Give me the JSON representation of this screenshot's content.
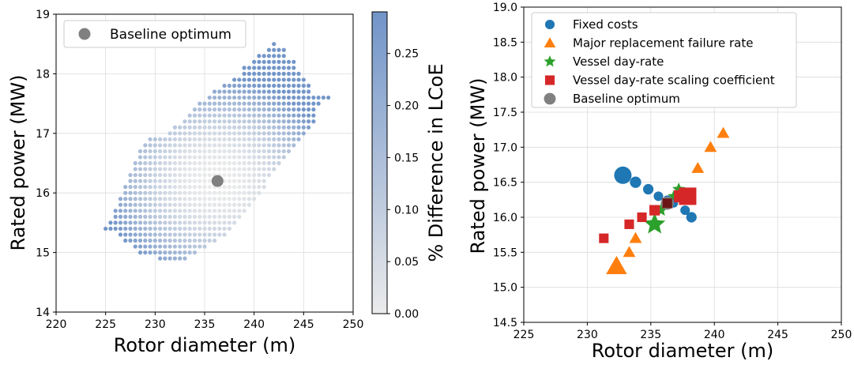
{
  "chart_data": [
    {
      "type": "scatter",
      "xlabel": "Rotor diameter (m)",
      "ylabel": "Rated power (MW)",
      "xlim": [
        220,
        250
      ],
      "ylim": [
        14,
        19
      ],
      "xticks": [
        "220",
        "225",
        "230",
        "235",
        "240",
        "245",
        "250"
      ],
      "yticks": [
        "14",
        "15",
        "16",
        "17",
        "18",
        "19"
      ],
      "grid": true,
      "legend": {
        "placement": "top-left",
        "entries": [
          {
            "label": "Baseline optimum",
            "color": "#808080"
          }
        ]
      },
      "baseline_optimum": {
        "x": 236.3,
        "y": 16.2
      },
      "colorbar": {
        "label": "% Difference in LCoE",
        "range": [
          0,
          0.29
        ],
        "ticks": [
          "0.00",
          "0.05",
          "0.10",
          "0.15",
          "0.20",
          "0.25"
        ],
        "color_low": "#ebebeb",
        "color_high": "#7194c8"
      },
      "grid_points": {
        "description_of_region": "feasible design grid",
        "rows": [
          {
            "y": 14.9,
            "x_from": 230.5,
            "x_to": 233.0
          },
          {
            "y": 15.0,
            "x_from": 228.5,
            "x_to": 234.0
          },
          {
            "y": 15.1,
            "x_from": 228.0,
            "x_to": 235.0
          },
          {
            "y": 15.2,
            "x_from": 227.0,
            "x_to": 236.0
          },
          {
            "y": 15.3,
            "x_from": 226.5,
            "x_to": 237.0
          },
          {
            "y": 15.4,
            "x_from": 225.0,
            "x_to": 237.5
          },
          {
            "y": 15.5,
            "x_from": 225.5,
            "x_to": 238.0
          },
          {
            "y": 15.6,
            "x_from": 226.0,
            "x_to": 238.5
          },
          {
            "y": 15.7,
            "x_from": 226.0,
            "x_to": 239.0
          },
          {
            "y": 15.8,
            "x_from": 226.5,
            "x_to": 239.5
          },
          {
            "y": 15.9,
            "x_from": 226.5,
            "x_to": 240.0
          },
          {
            "y": 16.0,
            "x_from": 227.0,
            "x_to": 240.5
          },
          {
            "y": 16.1,
            "x_from": 227.0,
            "x_to": 241.0
          },
          {
            "y": 16.2,
            "x_from": 227.5,
            "x_to": 241.0
          },
          {
            "y": 16.3,
            "x_from": 227.5,
            "x_to": 241.5
          },
          {
            "y": 16.4,
            "x_from": 228.0,
            "x_to": 242.0
          },
          {
            "y": 16.5,
            "x_from": 228.0,
            "x_to": 242.5
          },
          {
            "y": 16.6,
            "x_from": 228.5,
            "x_to": 243.0
          },
          {
            "y": 16.7,
            "x_from": 228.5,
            "x_to": 243.5
          },
          {
            "y": 16.8,
            "x_from": 229.0,
            "x_to": 244.0
          },
          {
            "y": 16.9,
            "x_from": 229.5,
            "x_to": 244.5
          },
          {
            "y": 17.0,
            "x_from": 231.5,
            "x_to": 245.0
          },
          {
            "y": 17.1,
            "x_from": 232.0,
            "x_to": 245.5
          },
          {
            "y": 17.2,
            "x_from": 233.0,
            "x_to": 246.0
          },
          {
            "y": 17.3,
            "x_from": 233.5,
            "x_to": 246.0
          },
          {
            "y": 17.4,
            "x_from": 234.0,
            "x_to": 246.0
          },
          {
            "y": 17.5,
            "x_from": 234.5,
            "x_to": 246.5
          },
          {
            "y": 17.6,
            "x_from": 235.5,
            "x_to": 247.5
          },
          {
            "y": 17.7,
            "x_from": 236.0,
            "x_to": 245.5
          },
          {
            "y": 17.8,
            "x_from": 237.0,
            "x_to": 245.5
          },
          {
            "y": 17.9,
            "x_from": 238.0,
            "x_to": 245.0
          },
          {
            "y": 18.0,
            "x_from": 239.0,
            "x_to": 244.5
          },
          {
            "y": 18.1,
            "x_from": 239.0,
            "x_to": 244.0
          },
          {
            "y": 18.2,
            "x_from": 240.0,
            "x_to": 244.0
          },
          {
            "y": 18.3,
            "x_from": 240.5,
            "x_to": 243.0
          },
          {
            "y": 18.4,
            "x_from": 241.5,
            "x_to": 243.0
          },
          {
            "y": 18.5,
            "x_from": 242.0,
            "x_to": 242.0
          }
        ]
      }
    },
    {
      "type": "scatter",
      "xlabel": "Rotor diameter (m)",
      "ylabel": "Rated power (MW)",
      "xlim": [
        225,
        250
      ],
      "ylim": [
        14.5,
        19.0
      ],
      "xticks": [
        "225",
        "230",
        "235",
        "240",
        "245",
        "250"
      ],
      "yticks": [
        "14.5",
        "15.0",
        "15.5",
        "16.0",
        "16.5",
        "17.0",
        "17.5",
        "18.0",
        "18.5",
        "19.0"
      ],
      "grid": true,
      "legend": {
        "placement": "top-left"
      },
      "series": [
        {
          "name": "Fixed costs",
          "marker": "circle",
          "color": "#1f77b4",
          "points": [
            {
              "x": 232.8,
              "y": 16.6,
              "s": 2.0
            },
            {
              "x": 233.8,
              "y": 16.5,
              "s": 1.3
            },
            {
              "x": 234.8,
              "y": 16.4,
              "s": 1.2
            },
            {
              "x": 235.6,
              "y": 16.3,
              "s": 1.1
            },
            {
              "x": 236.3,
              "y": 16.25,
              "s": 1.0
            },
            {
              "x": 236.8,
              "y": 16.2,
              "s": 1.0
            },
            {
              "x": 237.7,
              "y": 16.1,
              "s": 1.1
            },
            {
              "x": 238.2,
              "y": 16.0,
              "s": 1.2
            }
          ]
        },
        {
          "name": "Major replacement failure rate",
          "marker": "triangle",
          "color": "#ff7f0e",
          "points": [
            {
              "x": 232.3,
              "y": 15.3,
              "s": 2.0
            },
            {
              "x": 233.3,
              "y": 15.5,
              "s": 1.2
            },
            {
              "x": 233.8,
              "y": 15.7,
              "s": 1.2
            },
            {
              "x": 238.7,
              "y": 16.7,
              "s": 1.2
            },
            {
              "x": 239.7,
              "y": 17.0,
              "s": 1.2
            },
            {
              "x": 240.7,
              "y": 17.2,
              "s": 1.2
            }
          ]
        },
        {
          "name": "Vessel day-rate",
          "marker": "star",
          "color": "#2ca02c",
          "points": [
            {
              "x": 235.3,
              "y": 15.9,
              "s": 2.0
            },
            {
              "x": 235.8,
              "y": 16.1,
              "s": 1.2
            },
            {
              "x": 236.3,
              "y": 16.2,
              "s": 1.1
            },
            {
              "x": 236.8,
              "y": 16.3,
              "s": 1.1
            },
            {
              "x": 237.2,
              "y": 16.4,
              "s": 1.2
            }
          ]
        },
        {
          "name": "Vessel day-rate scaling coefficient",
          "marker": "square",
          "color": "#d62728",
          "points": [
            {
              "x": 231.3,
              "y": 15.7,
              "s": 1.1
            },
            {
              "x": 233.3,
              "y": 15.9,
              "s": 1.1
            },
            {
              "x": 234.3,
              "y": 16.0,
              "s": 1.1
            },
            {
              "x": 235.3,
              "y": 16.1,
              "s": 1.2
            },
            {
              "x": 236.3,
              "y": 16.2,
              "s": 1.2
            },
            {
              "x": 237.3,
              "y": 16.3,
              "s": 1.4
            },
            {
              "x": 237.9,
              "y": 16.3,
              "s": 2.0
            }
          ]
        },
        {
          "name": "Baseline optimum",
          "marker": "circle",
          "color": "#808080",
          "points": [
            {
              "x": 236.3,
              "y": 16.2,
              "s": 1.5
            }
          ]
        }
      ]
    }
  ]
}
